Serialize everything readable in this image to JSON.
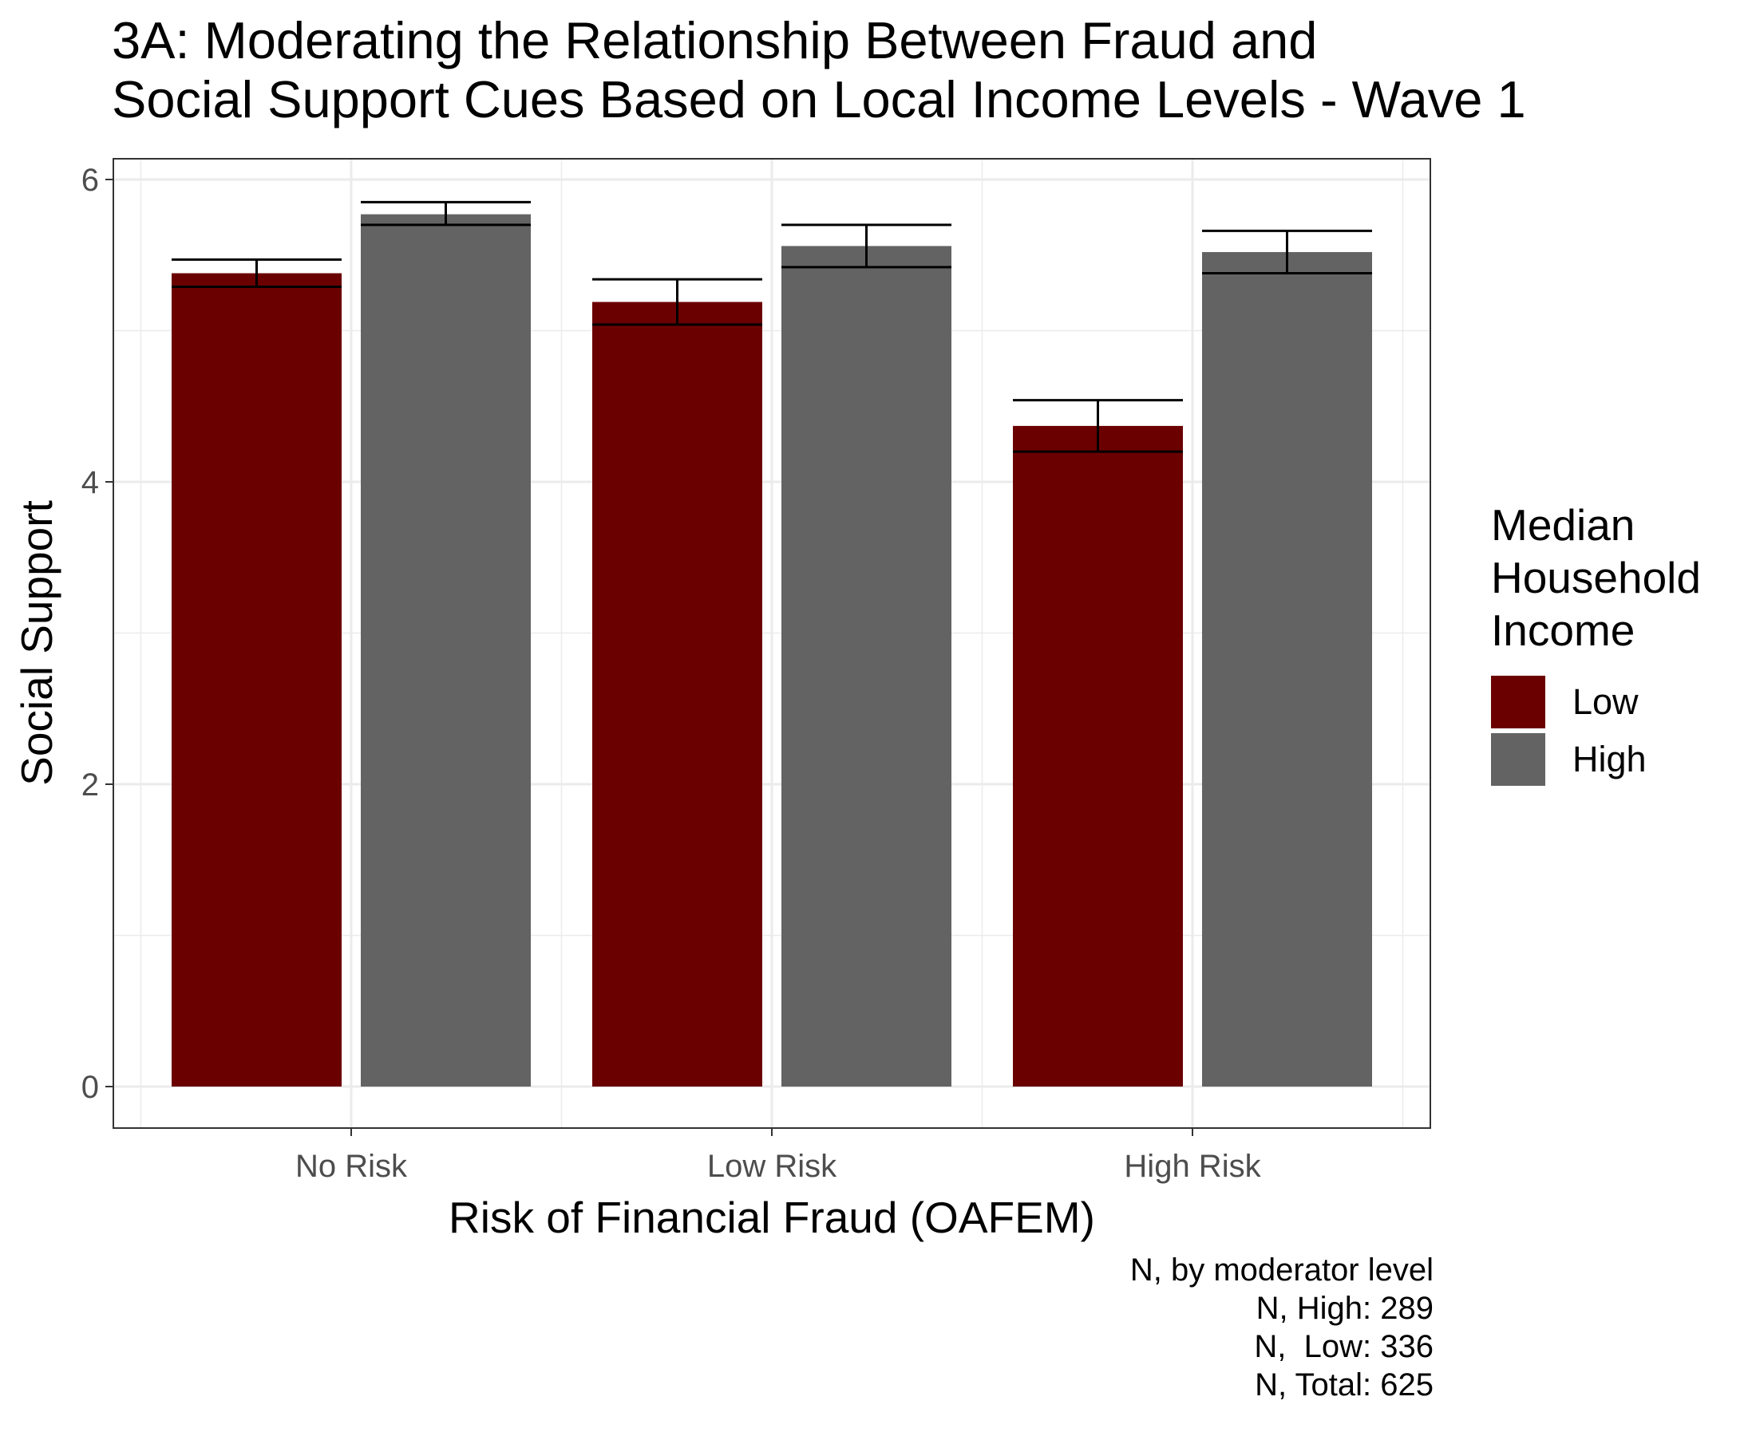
{
  "chart_data": {
    "type": "bar",
    "title": "3A: Moderating the Relationship Between Fraud and\nSocial Support Cues Based on Local Income Levels - Wave 1",
    "xlabel": "Risk of Financial Fraud (OAFEM)",
    "ylabel": "Social Support",
    "categories": [
      "No Risk",
      "Low Risk",
      "High Risk"
    ],
    "ylim": [
      -0.28,
      6.05
    ],
    "yticks": [
      0,
      2,
      4,
      6
    ],
    "grid": true,
    "legend": {
      "title": "Median\nHousehold\nIncome",
      "placement": "right"
    },
    "series": [
      {
        "name": "Low",
        "color": "#6b0000",
        "values": [
          5.38,
          5.19,
          4.37
        ],
        "error_low": [
          5.29,
          5.04,
          4.2
        ],
        "error_high": [
          5.47,
          5.34,
          4.54
        ]
      },
      {
        "name": "High",
        "color": "#636363",
        "values": [
          5.77,
          5.56,
          5.52
        ],
        "error_low": [
          5.7,
          5.42,
          5.38
        ],
        "error_high": [
          5.85,
          5.7,
          5.66
        ]
      }
    ],
    "caption": [
      "N, by moderator level",
      "N, High: 289",
      "N,  Low: 336",
      "N, Total: 625"
    ]
  }
}
